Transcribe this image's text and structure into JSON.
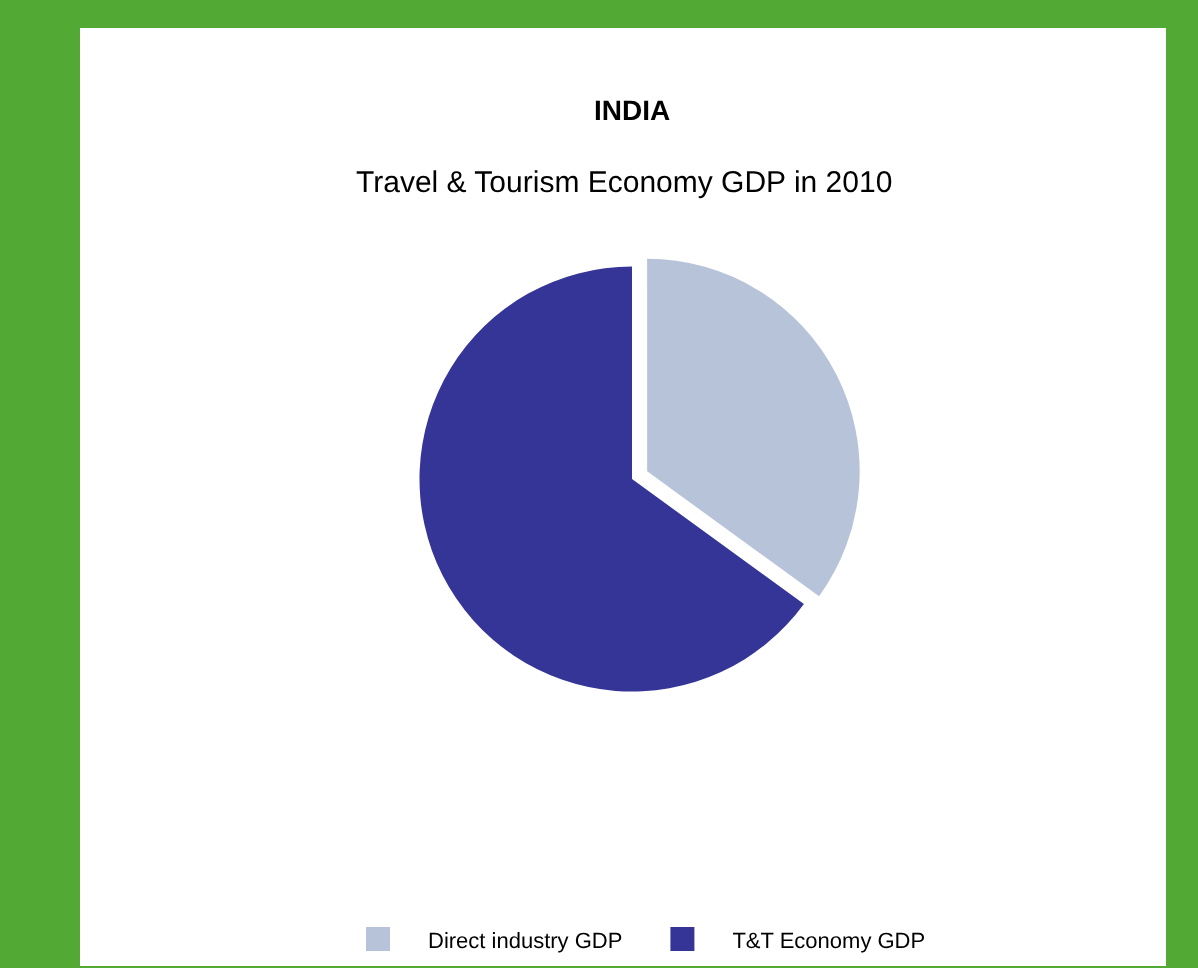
{
  "chart_data": {
    "type": "pie",
    "title": "INDIA",
    "subtitle": "Travel & Tourism Economy GDP in 2010",
    "categories": [
      "Direct industry GDP",
      "T&T Economy GDP"
    ],
    "values": [
      35,
      65
    ],
    "colors": [
      "#b7c3d9",
      "#353598"
    ],
    "legend": "bottom"
  }
}
